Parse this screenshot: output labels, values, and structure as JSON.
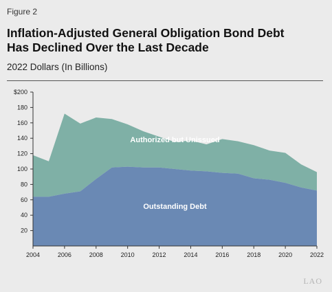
{
  "figure_label": "Figure 2",
  "title_line1": "Inflation-Adjusted General Obligation Bond Debt",
  "title_line2": "Has Declined Over the Last Decade",
  "subtitle": "2022 Dollars (In Billions)",
  "logo_text": "LAO",
  "colors": {
    "authorized": "#7fb0a6",
    "outstanding": "#6a89b4",
    "background": "#ebebeb"
  },
  "chart_data": {
    "type": "area",
    "stacked": true,
    "x": [
      2004,
      2005,
      2006,
      2007,
      2008,
      2009,
      2010,
      2011,
      2012,
      2013,
      2014,
      2015,
      2016,
      2017,
      2018,
      2019,
      2020,
      2021,
      2022
    ],
    "xticks": [
      2004,
      2006,
      2008,
      2010,
      2012,
      2014,
      2016,
      2018,
      2020,
      2022
    ],
    "ylim": [
      0,
      200
    ],
    "yticks": [
      20,
      40,
      60,
      80,
      100,
      120,
      140,
      160,
      180,
      200
    ],
    "ytick_labels": [
      "20",
      "40",
      "60",
      "80",
      "100",
      "120",
      "140",
      "160",
      "180",
      "$200"
    ],
    "series": [
      {
        "name": "Outstanding Debt",
        "values": [
          64,
          64,
          68,
          71,
          87,
          102,
          103,
          102,
          102,
          100,
          98,
          97,
          95,
          94,
          88,
          86,
          82,
          76,
          72
        ]
      },
      {
        "name": "Authorized but Unissued",
        "values": [
          54,
          46,
          104,
          88,
          80,
          63,
          55,
          47,
          40,
          35,
          39,
          35,
          44,
          42,
          43,
          38,
          39,
          30,
          24
        ]
      }
    ],
    "grid": false
  }
}
